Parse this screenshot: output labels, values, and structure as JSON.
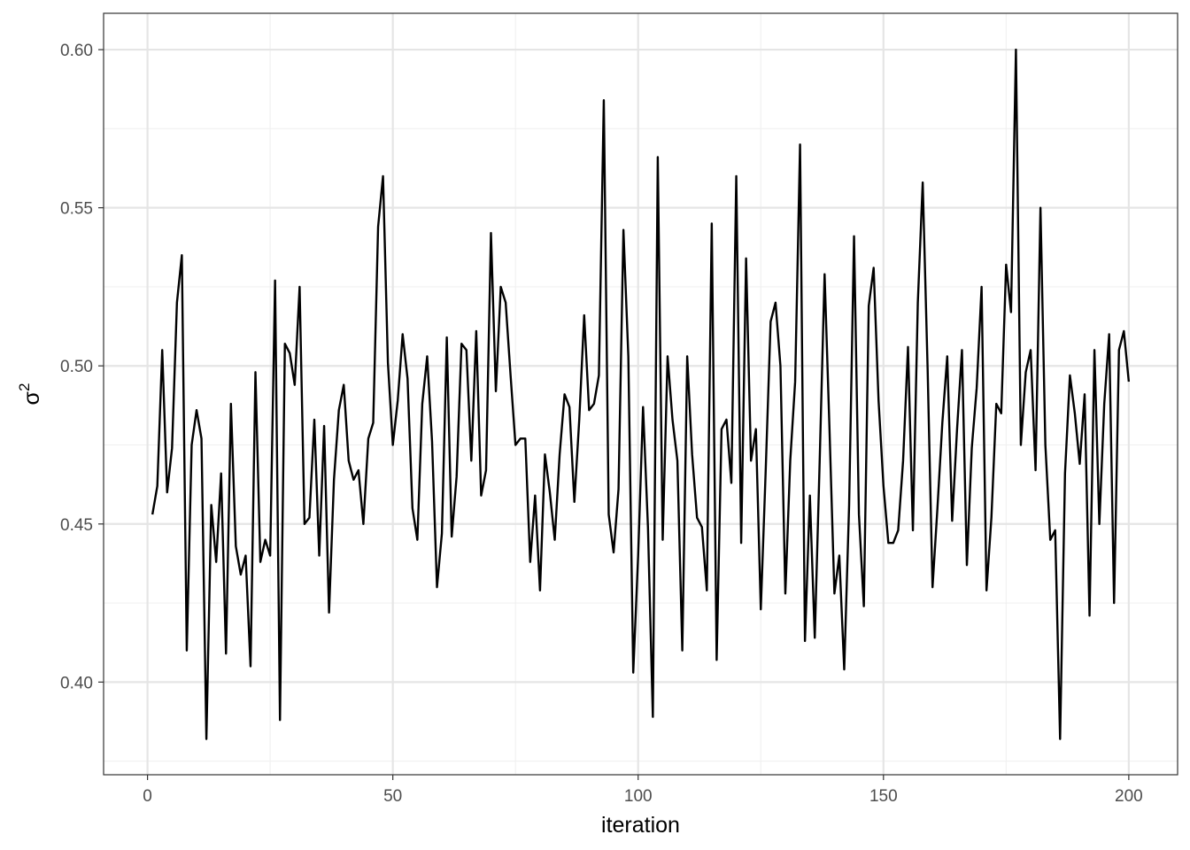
{
  "chart_data": {
    "type": "line",
    "title": "",
    "xlabel": "iteration",
    "ylabel": "σ2",
    "ylabel_parts": {
      "base": "σ",
      "superscript": "2"
    },
    "xlim": [
      -8.95,
      209.95
    ],
    "ylim": [
      0.3707,
      0.6115
    ],
    "xticks": [
      0,
      50,
      100,
      150,
      200
    ],
    "xtick_labels": [
      "0",
      "50",
      "100",
      "150",
      "200"
    ],
    "yticks": [
      0.4,
      0.45,
      0.5,
      0.55,
      0.6
    ],
    "ytick_labels": [
      "0.40",
      "0.45",
      "0.50",
      "0.55",
      "0.60"
    ],
    "grid": true,
    "legend": "none",
    "colors": {
      "line": "#000000",
      "grid_major": "#e5e5e5",
      "grid_minor": "#f0f0f0",
      "panel_border": "#333333",
      "tick_text": "#4d4d4d"
    },
    "series": [
      {
        "x": [
          1,
          2,
          3,
          4,
          5,
          6,
          7,
          8,
          9,
          10,
          11,
          12,
          13,
          14,
          15,
          16,
          17,
          18,
          19,
          20,
          21,
          22,
          23,
          24,
          25,
          26,
          27,
          28,
          29,
          30,
          31,
          32,
          33,
          34,
          35,
          36,
          37,
          38,
          39,
          40,
          41,
          42,
          43,
          44,
          45,
          46,
          47,
          48,
          49,
          50,
          51,
          52,
          53,
          54,
          55,
          56,
          57,
          58,
          59,
          60,
          61,
          62,
          63,
          64,
          65,
          66,
          67,
          68,
          69,
          70,
          71,
          72,
          73,
          74,
          75,
          76,
          77,
          78,
          79,
          80,
          81,
          82,
          83,
          84,
          85,
          86,
          87,
          88,
          89,
          90,
          91,
          92,
          93,
          94,
          95,
          96,
          97,
          98,
          99,
          100,
          101,
          102,
          103,
          104,
          105,
          106,
          107,
          108,
          109,
          110,
          111,
          112,
          113,
          114,
          115,
          116,
          117,
          118,
          119,
          120,
          121,
          122,
          123,
          124,
          125,
          126,
          127,
          128,
          129,
          130,
          131,
          132,
          133,
          134,
          135,
          136,
          137,
          138,
          139,
          140,
          141,
          142,
          143,
          144,
          145,
          146,
          147,
          148,
          149,
          150,
          151,
          152,
          153,
          154,
          155,
          156,
          157,
          158,
          159,
          160,
          161,
          162,
          163,
          164,
          165,
          166,
          167,
          168,
          169,
          170,
          171,
          172,
          173,
          174,
          175,
          176,
          177,
          178,
          179,
          180,
          181,
          182,
          183,
          184,
          185,
          186,
          187,
          188,
          189,
          190,
          191,
          192,
          193,
          194,
          195,
          196,
          197,
          198,
          199,
          200
        ],
        "values": [
          0.453,
          0.462,
          0.505,
          0.46,
          0.474,
          0.52,
          0.535,
          0.41,
          0.475,
          0.486,
          0.477,
          0.382,
          0.456,
          0.438,
          0.466,
          0.409,
          0.488,
          0.443,
          0.434,
          0.44,
          0.405,
          0.498,
          0.438,
          0.445,
          0.44,
          0.527,
          0.388,
          0.507,
          0.504,
          0.494,
          0.525,
          0.45,
          0.452,
          0.483,
          0.44,
          0.481,
          0.422,
          0.464,
          0.486,
          0.494,
          0.47,
          0.464,
          0.467,
          0.45,
          0.477,
          0.482,
          0.544,
          0.56,
          0.501,
          0.475,
          0.489,
          0.51,
          0.496,
          0.455,
          0.445,
          0.488,
          0.503,
          0.476,
          0.43,
          0.447,
          0.509,
          0.446,
          0.465,
          0.507,
          0.505,
          0.47,
          0.511,
          0.459,
          0.467,
          0.542,
          0.492,
          0.525,
          0.52,
          0.497,
          0.475,
          0.477,
          0.477,
          0.438,
          0.459,
          0.429,
          0.472,
          0.46,
          0.445,
          0.472,
          0.491,
          0.487,
          0.457,
          0.483,
          0.516,
          0.486,
          0.488,
          0.497,
          0.584,
          0.453,
          0.441,
          0.461,
          0.543,
          0.503,
          0.403,
          0.44,
          0.487,
          0.449,
          0.389,
          0.566,
          0.445,
          0.503,
          0.483,
          0.47,
          0.41,
          0.503,
          0.472,
          0.452,
          0.449,
          0.429,
          0.545,
          0.407,
          0.48,
          0.483,
          0.463,
          0.56,
          0.444,
          0.534,
          0.47,
          0.48,
          0.423,
          0.467,
          0.514,
          0.52,
          0.5,
          0.428,
          0.47,
          0.495,
          0.57,
          0.413,
          0.459,
          0.414,
          0.47,
          0.529,
          0.48,
          0.428,
          0.44,
          0.404,
          0.456,
          0.541,
          0.453,
          0.424,
          0.519,
          0.531,
          0.489,
          0.462,
          0.444,
          0.444,
          0.448,
          0.47,
          0.506,
          0.448,
          0.52,
          0.558,
          0.499,
          0.43,
          0.455,
          0.482,
          0.503,
          0.451,
          0.48,
          0.505,
          0.437,
          0.474,
          0.493,
          0.525,
          0.429,
          0.452,
          0.488,
          0.485,
          0.532,
          0.517,
          0.6,
          0.475,
          0.498,
          0.505,
          0.467,
          0.55,
          0.475,
          0.445,
          0.448,
          0.382,
          0.466,
          0.497,
          0.485,
          0.469,
          0.491,
          0.421,
          0.505,
          0.45,
          0.488,
          0.51,
          0.425,
          0.505,
          0.511,
          0.495
        ]
      }
    ]
  }
}
